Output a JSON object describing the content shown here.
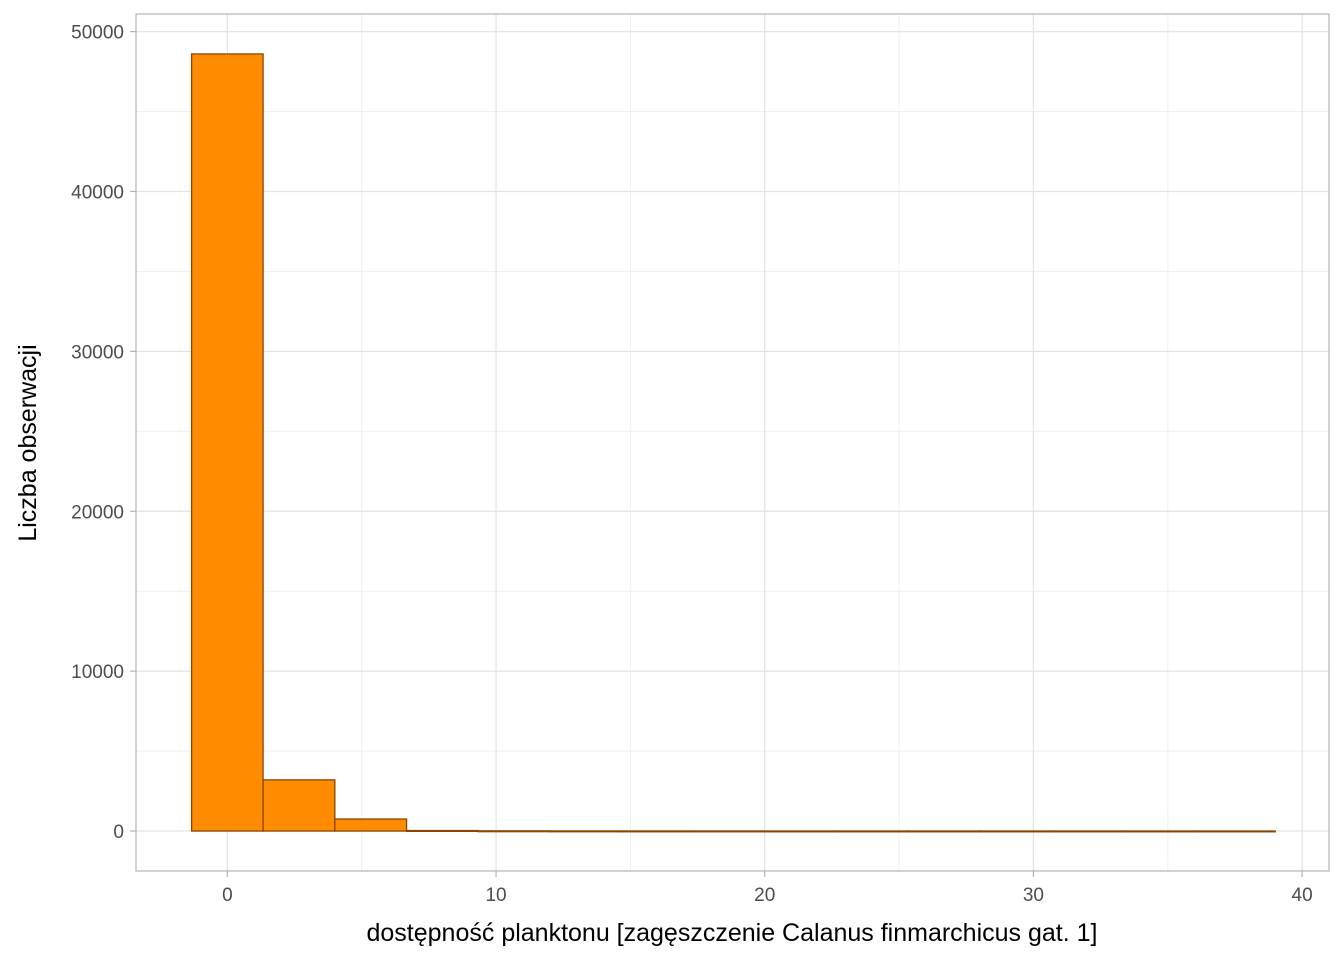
{
  "chart_data": {
    "type": "bar",
    "title": "",
    "xlabel": "dostępność planktonu [zagęszczenie Calanus finmarchicus gat. 1]",
    "ylabel": "Liczba obserwacji",
    "xlim": [
      -3.4,
      41.0
    ],
    "ylim": [
      -2500,
      51100
    ],
    "x_ticks": [
      0,
      10,
      20,
      30,
      40
    ],
    "y_ticks": [
      0,
      10000,
      20000,
      30000,
      40000,
      50000
    ],
    "x_tick_labels": [
      "0",
      "10",
      "20",
      "30",
      "40"
    ],
    "y_tick_labels": [
      "0",
      "10000",
      "20000",
      "30000",
      "40000",
      "50000"
    ],
    "grid": true,
    "bin_width": 2.67,
    "bins": [
      {
        "x_start": -1.33,
        "x_end": 1.33,
        "count": 48600
      },
      {
        "x_start": 1.33,
        "x_end": 4.0,
        "count": 3200
      },
      {
        "x_start": 4.0,
        "x_end": 6.67,
        "count": 750
      },
      {
        "x_start": 6.67,
        "x_end": 9.33,
        "count": 30
      },
      {
        "x_start": 9.33,
        "x_end": 12.0,
        "count": 10
      },
      {
        "x_start": 12.0,
        "x_end": 14.67,
        "count": 5
      },
      {
        "x_start": 14.67,
        "x_end": 17.33,
        "count": 3
      },
      {
        "x_start": 17.33,
        "x_end": 20.0,
        "count": 2
      },
      {
        "x_start": 20.0,
        "x_end": 22.67,
        "count": 1
      },
      {
        "x_start": 22.67,
        "x_end": 25.33,
        "count": 1
      },
      {
        "x_start": 25.33,
        "x_end": 28.0,
        "count": 1
      },
      {
        "x_start": 28.0,
        "x_end": 30.67,
        "count": 1
      },
      {
        "x_start": 30.67,
        "x_end": 33.33,
        "count": 1
      },
      {
        "x_start": 33.33,
        "x_end": 36.0,
        "count": 1
      },
      {
        "x_start": 36.0,
        "x_end": 39.0,
        "count": 1
      }
    ],
    "colors": {
      "bar_fill": "#FF8C00",
      "bar_stroke": "#8B4500",
      "grid_major": "#e3e3e3",
      "grid_minor": "#efefef",
      "panel_border": "#b3b3b3"
    }
  }
}
